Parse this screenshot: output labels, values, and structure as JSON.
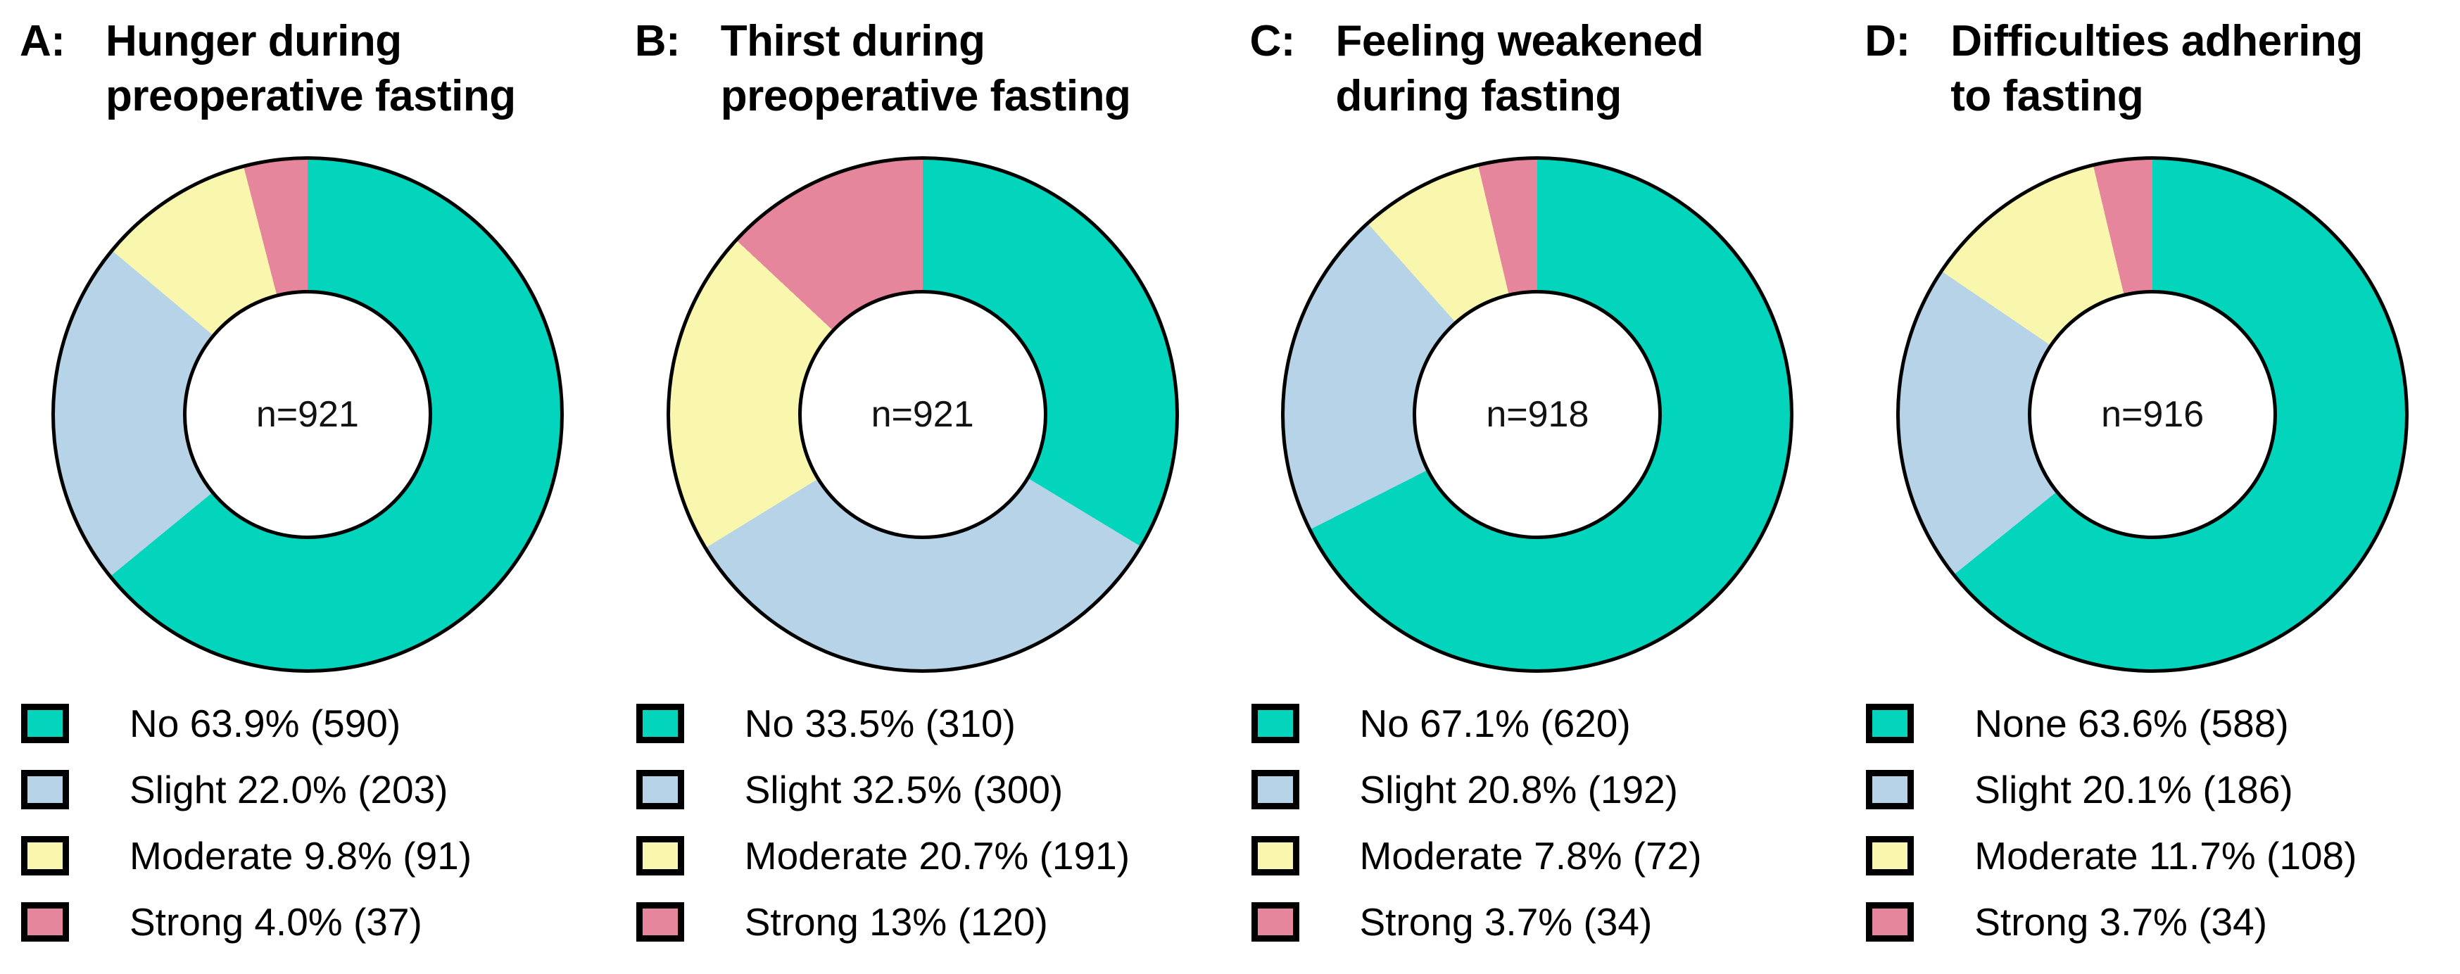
{
  "colors": {
    "no": "#03D5BC",
    "slight": "#B7D3E7",
    "moderate": "#F9F6AE",
    "strong": "#E6869D",
    "outline": "#000000",
    "hole_fill": "#FFFFFF"
  },
  "segment_keys": [
    "no",
    "slight",
    "moderate",
    "strong"
  ],
  "chart_data": [
    {
      "type": "pie",
      "donut": true,
      "panel_letter": "A:",
      "title_line1": "Hunger during",
      "title_line2": "preoperative fasting",
      "center_label": "n=921",
      "n": 921,
      "categories": [
        "No",
        "Slight",
        "Moderate",
        "Strong"
      ],
      "values_pct": [
        63.9,
        22.0,
        9.8,
        4.0
      ],
      "counts": [
        590,
        203,
        91,
        37
      ],
      "legend_entries": [
        "No 63.9% (590)",
        "Slight 22.0% (203)",
        "Moderate 9.8% (91)",
        "Strong 4.0% (37)"
      ],
      "start_angle_deg": 0,
      "direction": "clockwise",
      "legend_position": "bottom-left"
    },
    {
      "type": "pie",
      "donut": true,
      "panel_letter": "B:",
      "title_line1": "Thirst during",
      "title_line2": "preoperative fasting",
      "center_label": "n=921",
      "n": 921,
      "categories": [
        "No",
        "Slight",
        "Moderate",
        "Strong"
      ],
      "values_pct": [
        33.5,
        32.5,
        20.7,
        13
      ],
      "counts": [
        310,
        300,
        191,
        120
      ],
      "legend_entries": [
        "No 33.5% (310)",
        "Slight 32.5% (300)",
        "Moderate 20.7% (191)",
        "Strong 13% (120)"
      ],
      "start_angle_deg": 0,
      "direction": "clockwise",
      "legend_position": "bottom-left"
    },
    {
      "type": "pie",
      "donut": true,
      "panel_letter": "C:",
      "title_line1": "Feeling weakened",
      "title_line2": "during fasting",
      "center_label": "n=918",
      "n": 918,
      "categories": [
        "No",
        "Slight",
        "Moderate",
        "Strong"
      ],
      "values_pct": [
        67.1,
        20.8,
        7.8,
        3.7
      ],
      "counts": [
        620,
        192,
        72,
        34
      ],
      "legend_entries": [
        "No 67.1% (620)",
        "Slight 20.8% (192)",
        "Moderate 7.8% (72)",
        "Strong 3.7% (34)"
      ],
      "start_angle_deg": 0,
      "direction": "clockwise",
      "legend_position": "bottom-left"
    },
    {
      "type": "pie",
      "donut": true,
      "panel_letter": "D:",
      "title_line1": "Difficulties adhering",
      "title_line2": "to fasting",
      "center_label": "n=916",
      "n": 916,
      "categories": [
        "None",
        "Slight",
        "Moderate",
        "Strong"
      ],
      "values_pct": [
        63.6,
        20.1,
        11.7,
        3.7
      ],
      "counts": [
        588,
        186,
        108,
        34
      ],
      "legend_entries": [
        "None 63.6% (588)",
        "Slight 20.1% (186)",
        "Moderate 11.7% (108)",
        "Strong 3.7% (34)"
      ],
      "start_angle_deg": 0,
      "direction": "clockwise",
      "legend_position": "bottom-left"
    }
  ]
}
